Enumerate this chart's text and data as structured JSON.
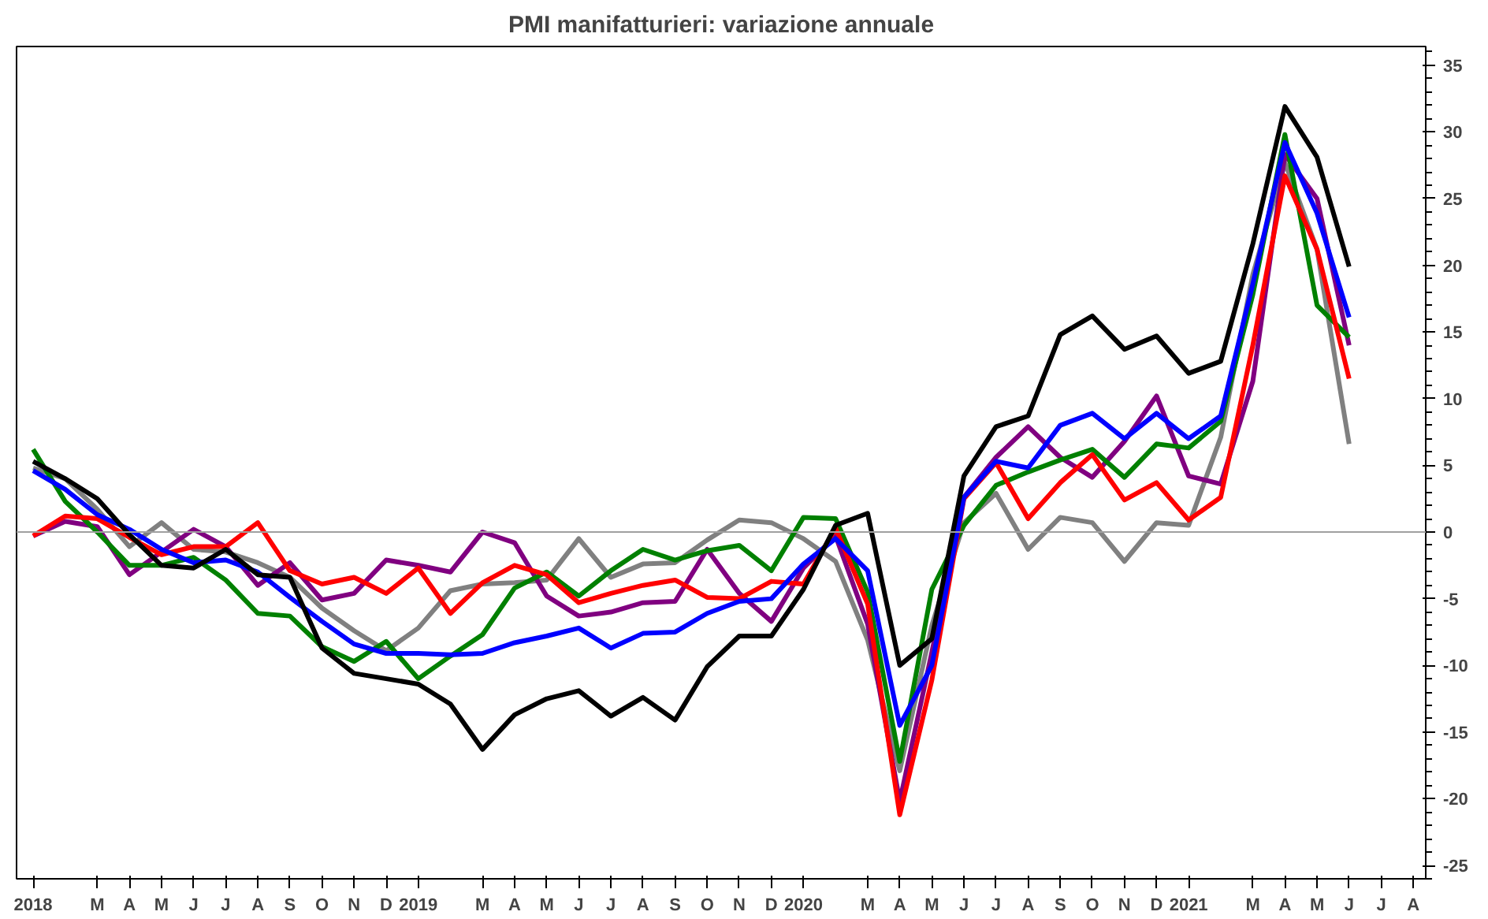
{
  "chart_data": {
    "type": "line",
    "title": "PMI manifatturieri: variazione annuale",
    "x": [
      "2018-01",
      "2018-02",
      "2018-03",
      "2018-04",
      "2018-05",
      "2018-06",
      "2018-07",
      "2018-08",
      "2018-09",
      "2018-10",
      "2018-11",
      "2018-12",
      "2019-01",
      "2019-02",
      "2019-03",
      "2019-04",
      "2019-05",
      "2019-06",
      "2019-07",
      "2019-08",
      "2019-09",
      "2019-10",
      "2019-11",
      "2019-12",
      "2020-01",
      "2020-02",
      "2020-03",
      "2020-04",
      "2020-05",
      "2020-06",
      "2020-07",
      "2020-08",
      "2020-09",
      "2020-10",
      "2020-11",
      "2020-12",
      "2021-01",
      "2021-02",
      "2021-03",
      "2021-04",
      "2021-05",
      "2021-06"
    ],
    "series": [
      {
        "color": "#808080",
        "values": [
          4.8,
          4.0,
          1.7,
          -1.1,
          0.7,
          -1.3,
          -1.5,
          -2.3,
          -3.4,
          -5.7,
          -7.4,
          -8.9,
          -7.2,
          -4.4,
          -3.9,
          -3.8,
          -3.6,
          -0.5,
          -3.4,
          -2.4,
          -2.3,
          -0.6,
          0.9,
          0.7,
          -0.5,
          -2.2,
          -8.1,
          -17.9,
          -7.0,
          0.7,
          2.9,
          -1.3,
          1.1,
          0.7,
          -2.2,
          0.7,
          0.5,
          7.1,
          19.3,
          27.7,
          21.2,
          6.6
        ]
      },
      {
        "color": "#800080",
        "values": [
          -0.3,
          0.8,
          0.4,
          -3.2,
          -1.5,
          0.2,
          -1.1,
          -4.0,
          -2.3,
          -5.1,
          -4.6,
          -2.1,
          -2.5,
          -3.0,
          0.0,
          -0.8,
          -4.8,
          -6.3,
          -6.0,
          -5.3,
          -5.2,
          -1.3,
          -4.6,
          -6.7,
          -2.7,
          -0.3,
          -6.9,
          -20.2,
          -9.0,
          2.6,
          5.6,
          7.9,
          5.6,
          4.1,
          6.8,
          10.2,
          4.2,
          3.6,
          11.3,
          28.3,
          25.0,
          14.0
        ]
      },
      {
        "color": "#008000",
        "values": [
          6.2,
          2.3,
          0.0,
          -2.5,
          -2.5,
          -1.9,
          -3.6,
          -6.1,
          -6.3,
          -8.6,
          -9.7,
          -8.2,
          -11.0,
          -9.3,
          -7.7,
          -4.2,
          -3.0,
          -4.8,
          -2.9,
          -1.3,
          -2.1,
          -1.4,
          -1.0,
          -2.9,
          1.1,
          1.0,
          -4.5,
          -17.2,
          -4.3,
          0.5,
          3.5,
          4.5,
          5.4,
          6.2,
          4.1,
          6.6,
          6.3,
          8.3,
          17.8,
          29.8,
          17.0,
          14.6
        ]
      },
      {
        "color": "#ff0000",
        "values": [
          -0.3,
          1.2,
          1.0,
          -0.4,
          -1.7,
          -1.1,
          -1.1,
          0.7,
          -2.9,
          -3.9,
          -3.4,
          -4.6,
          -2.7,
          -6.1,
          -3.8,
          -2.5,
          -3.2,
          -5.3,
          -4.6,
          -4.0,
          -3.6,
          -4.9,
          -5.0,
          -3.7,
          -3.9,
          0.3,
          -5.4,
          -21.2,
          -11.1,
          2.5,
          5.2,
          1.0,
          3.7,
          5.8,
          2.4,
          3.7,
          0.9,
          2.6,
          14.0,
          26.7,
          21.2,
          11.5
        ]
      },
      {
        "color": "#0000ff",
        "values": [
          4.6,
          3.2,
          1.3,
          0.2,
          -1.3,
          -2.3,
          -2.1,
          -3.0,
          -4.9,
          -6.7,
          -8.4,
          -9.1,
          -9.1,
          -9.2,
          -9.1,
          -8.3,
          -7.8,
          -7.2,
          -8.7,
          -7.6,
          -7.5,
          -6.1,
          -5.2,
          -5.0,
          -2.4,
          -0.5,
          -2.9,
          -14.5,
          -10.0,
          2.6,
          5.3,
          4.8,
          8.0,
          8.9,
          7.0,
          8.9,
          7.0,
          8.7,
          18.6,
          29.2,
          23.9,
          16.1
        ]
      },
      {
        "color": "#000000",
        "values": [
          5.3,
          4.0,
          2.5,
          -0.2,
          -2.5,
          -2.7,
          -1.3,
          -3.2,
          -3.4,
          -8.7,
          -10.6,
          -11.0,
          -11.4,
          -12.9,
          -16.3,
          -13.7,
          -12.5,
          -11.9,
          -13.8,
          -12.4,
          -14.1,
          -10.1,
          -7.8,
          -7.8,
          -4.3,
          0.5,
          1.4,
          -10.0,
          -8.0,
          4.2,
          7.9,
          8.7,
          14.8,
          16.2,
          13.7,
          14.7,
          11.9,
          12.8,
          21.6,
          31.9,
          28.1,
          19.9
        ]
      }
    ],
    "xlim": [
      "2017-12-16",
      "2021-08-13"
    ],
    "xticks": [
      {
        "value": "2018-01",
        "label": "2018"
      },
      {
        "value": "2018-03",
        "label": "M"
      },
      {
        "value": "2018-04",
        "label": "A"
      },
      {
        "value": "2018-05",
        "label": "M"
      },
      {
        "value": "2018-06",
        "label": "J"
      },
      {
        "value": "2018-07",
        "label": "J"
      },
      {
        "value": "2018-08",
        "label": "A"
      },
      {
        "value": "2018-09",
        "label": "S"
      },
      {
        "value": "2018-10",
        "label": "O"
      },
      {
        "value": "2018-11",
        "label": "N"
      },
      {
        "value": "2018-12",
        "label": "D"
      },
      {
        "value": "2019-01",
        "label": "2019"
      },
      {
        "value": "2019-03",
        "label": "M"
      },
      {
        "value": "2019-04",
        "label": "A"
      },
      {
        "value": "2019-05",
        "label": "M"
      },
      {
        "value": "2019-06",
        "label": "J"
      },
      {
        "value": "2019-07",
        "label": "J"
      },
      {
        "value": "2019-08",
        "label": "A"
      },
      {
        "value": "2019-09",
        "label": "S"
      },
      {
        "value": "2019-10",
        "label": "O"
      },
      {
        "value": "2019-11",
        "label": "N"
      },
      {
        "value": "2019-12",
        "label": "D"
      },
      {
        "value": "2020-01",
        "label": "2020"
      },
      {
        "value": "2020-03",
        "label": "M"
      },
      {
        "value": "2020-04",
        "label": "A"
      },
      {
        "value": "2020-05",
        "label": "M"
      },
      {
        "value": "2020-06",
        "label": "J"
      },
      {
        "value": "2020-07",
        "label": "J"
      },
      {
        "value": "2020-08",
        "label": "A"
      },
      {
        "value": "2020-09",
        "label": "S"
      },
      {
        "value": "2020-10",
        "label": "O"
      },
      {
        "value": "2020-11",
        "label": "N"
      },
      {
        "value": "2020-12",
        "label": "D"
      },
      {
        "value": "2021-01",
        "label": "2021"
      },
      {
        "value": "2021-03",
        "label": "M"
      },
      {
        "value": "2021-04",
        "label": "A"
      },
      {
        "value": "2021-05",
        "label": "M"
      },
      {
        "value": "2021-06",
        "label": "J"
      },
      {
        "value": "2021-07",
        "label": "J"
      },
      {
        "value": "2021-08",
        "label": "A"
      }
    ],
    "ylim": [
      -26,
      36.4
    ],
    "yticks": [
      -25,
      -20,
      -15,
      -10,
      -5,
      0,
      5,
      10,
      15,
      20,
      25,
      30,
      35
    ],
    "ref_lines": [
      {
        "axis": "y",
        "value": 0,
        "color": "#a0a0a0"
      }
    ],
    "grid": false,
    "line_style": "solid",
    "marker": "none"
  }
}
